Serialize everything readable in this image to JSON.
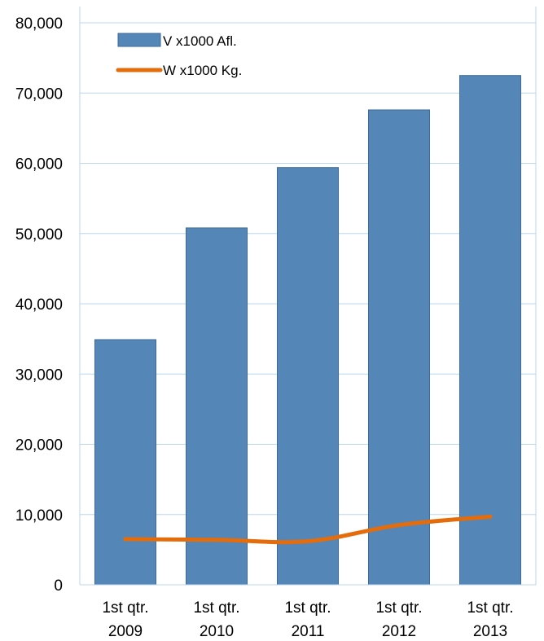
{
  "chart_data": {
    "type": "bar",
    "categories": [
      "1st qtr. 2009",
      "1st qtr. 2010",
      "1st qtr. 2011",
      "1st qtr. 2012",
      "1st qtr. 2013"
    ],
    "category_lines": [
      [
        "1st qtr.",
        "2009"
      ],
      [
        "1st qtr.",
        "2010"
      ],
      [
        "1st qtr.",
        "2011"
      ],
      [
        "1st qtr.",
        "2012"
      ],
      [
        "1st qtr.",
        "2013"
      ]
    ],
    "series": [
      {
        "name": "V x1000 Afl.",
        "kind": "bar",
        "color": "#5586B8",
        "values": [
          34900,
          50800,
          59400,
          67600,
          72500
        ]
      },
      {
        "name": "W x1000 Kg.",
        "kind": "line",
        "color": "#E46C0A",
        "values": [
          6500,
          6400,
          6200,
          8500,
          9700
        ]
      }
    ],
    "ylim": [
      0,
      80000
    ],
    "yticks": [
      0,
      10000,
      20000,
      30000,
      40000,
      50000,
      60000,
      70000,
      80000
    ],
    "ytick_labels": [
      "0",
      "10,000",
      "20,000",
      "30,000",
      "40,000",
      "50,000",
      "60,000",
      "70,000",
      "80,000"
    ],
    "grid": true,
    "legend_position": "top-left"
  }
}
